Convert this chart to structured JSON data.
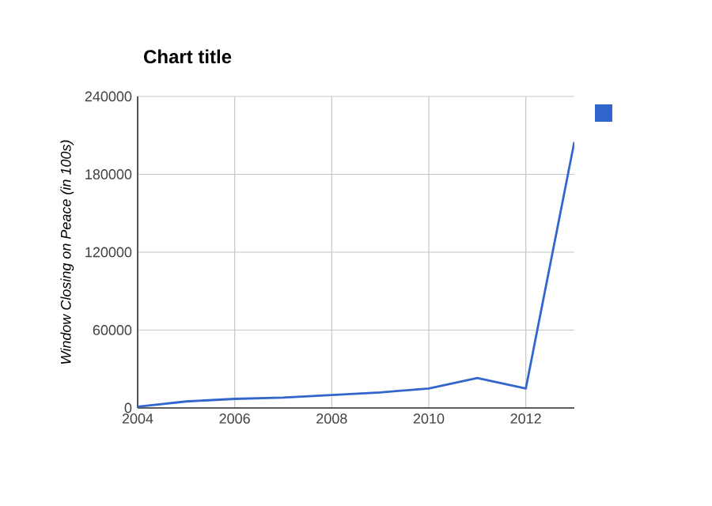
{
  "chart_data": {
    "type": "line",
    "title": "Chart title",
    "ylabel": "Window Closing on Peace (in 100s)",
    "x": [
      2004,
      2005,
      2006,
      2007,
      2008,
      2009,
      2010,
      2011,
      2012,
      2013
    ],
    "series": [
      {
        "color": "#3366cc",
        "values": [
          1000,
          5000,
          7000,
          8000,
          10000,
          12000,
          15000,
          23000,
          15000,
          205000
        ]
      }
    ],
    "xlim": [
      2004,
      2013
    ],
    "xticks": [
      2004,
      2006,
      2008,
      2010,
      2012
    ],
    "ylim": [
      0,
      240000
    ],
    "yticks": [
      0,
      60000,
      120000,
      180000,
      240000
    ],
    "grid": true,
    "marker": "none",
    "line_style": "solid"
  }
}
